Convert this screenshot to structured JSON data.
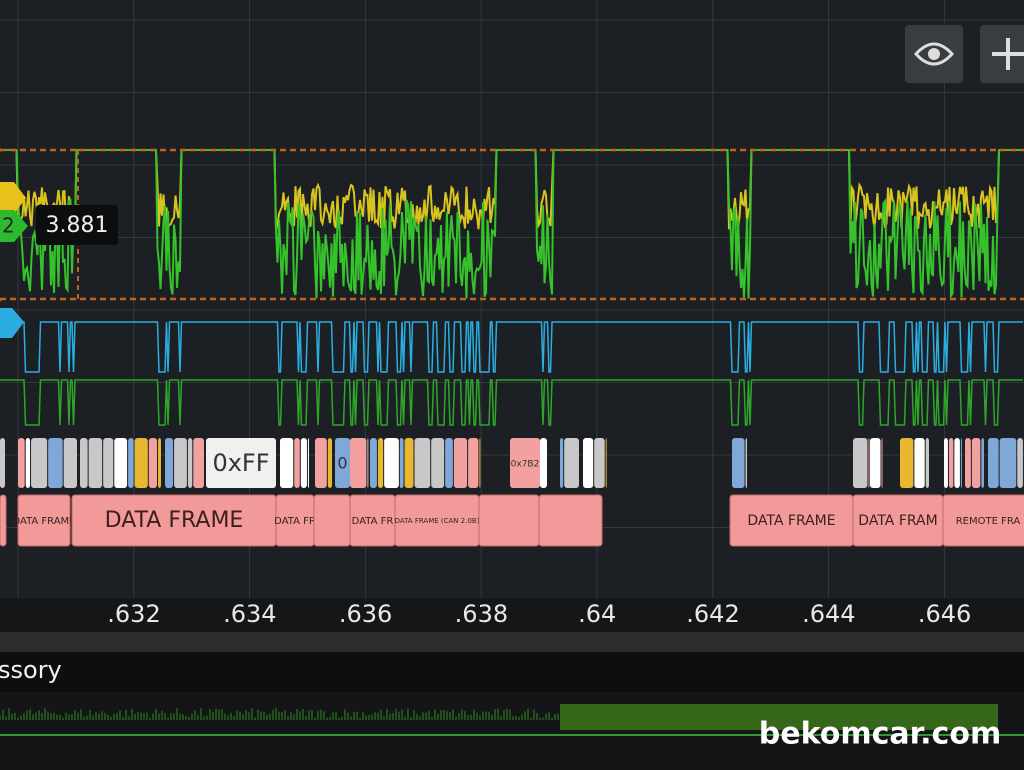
{
  "readout": {
    "value": "3.881"
  },
  "markers": {
    "channel": "2"
  },
  "time_axis": {
    "ticks": [
      ".632",
      ".634",
      ".636",
      ".638",
      ".64",
      ".642",
      ".644",
      ".646"
    ]
  },
  "decode": {
    "bytes": [
      "0xFF",
      "0",
      "0x7B2"
    ],
    "frames": [
      "DATA FRAME",
      "DATA FRAME",
      "DATA FR",
      "DATA FR",
      "DATA FRAME (CAN 2.0B)",
      "DATA FRAME",
      "DATA FRAM",
      "REMOTE FRA"
    ]
  },
  "panel": {
    "label": "ssory"
  },
  "watermark": "bekomcar.com"
}
